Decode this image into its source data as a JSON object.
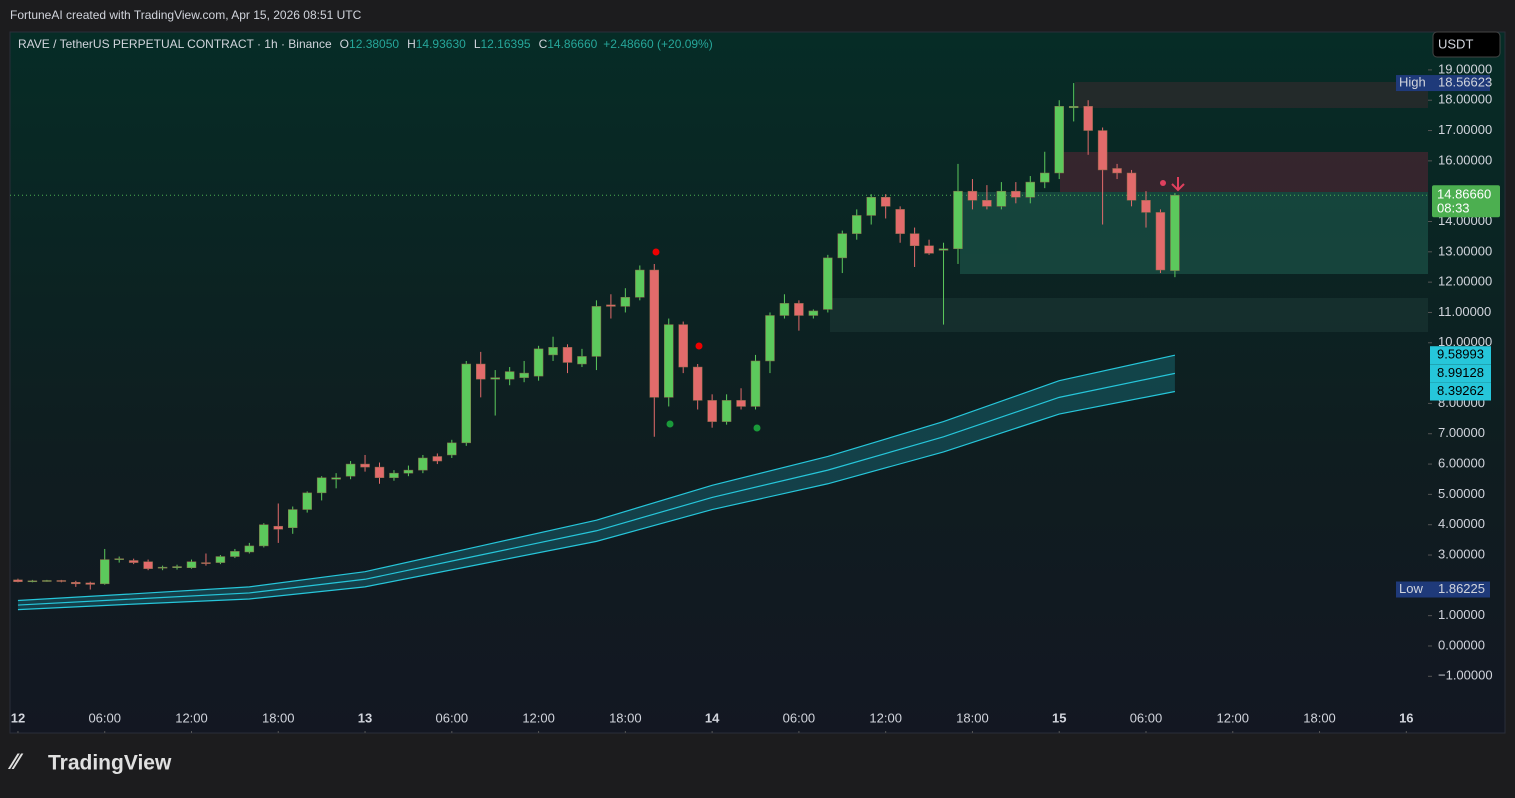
{
  "header": {
    "credit": "FortuneAI created with TradingView.com, Apr 15, 2026 08:51 UTC",
    "symbol": "RAVE / TetherUS PERPETUAL CONTRACT · 1h · Binance",
    "ohlc": [
      {
        "label": "O",
        "value": "12.38050"
      },
      {
        "label": "H",
        "value": "14.93630"
      },
      {
        "label": "L",
        "value": "12.16395"
      },
      {
        "label": "C",
        "value": "14.86660"
      }
    ],
    "change": "+2.48660 (+20.09%)",
    "currency": "USDT"
  },
  "footer": {
    "brand": "TradingView"
  },
  "chart_data": {
    "type": "candlestick",
    "x": [
      0,
      1,
      2,
      3,
      4,
      5,
      6,
      7,
      8,
      9,
      10,
      11,
      12,
      13,
      14,
      15,
      16,
      17,
      18,
      19,
      20,
      21,
      22,
      23,
      24,
      25,
      26,
      27,
      28,
      29,
      30,
      31,
      32,
      33,
      34,
      35,
      36,
      37,
      38,
      39,
      40,
      41,
      42,
      43,
      44,
      45,
      46,
      47,
      48,
      49,
      50,
      51,
      52,
      53,
      54,
      55,
      56,
      57,
      58,
      59,
      60,
      61,
      62,
      63,
      64,
      65,
      66,
      67,
      68,
      69,
      70,
      71,
      72,
      73,
      74,
      75,
      76,
      77,
      78,
      79,
      80
    ],
    "open": [
      2.18,
      2.13,
      2.15,
      2.16,
      2.1,
      2.08,
      2.05,
      2.85,
      2.82,
      2.78,
      2.58,
      2.58,
      2.58,
      2.75,
      2.75,
      2.95,
      3.1,
      3.3,
      3.95,
      3.9,
      4.5,
      5.05,
      5.5,
      5.6,
      6.0,
      5.9,
      5.55,
      5.7,
      5.8,
      6.25,
      6.3,
      6.7,
      9.3,
      8.8,
      8.8,
      8.85,
      8.9,
      9.6,
      9.85,
      9.3,
      9.55,
      11.25,
      11.2,
      11.5,
      12.4,
      8.2,
      10.6,
      9.2,
      8.1,
      7.4,
      8.1,
      7.9,
      9.4,
      10.9,
      11.3,
      10.9,
      11.1,
      12.8,
      13.6,
      14.2,
      14.8,
      14.4,
      13.6,
      13.2,
      13.05,
      13.1,
      15.0,
      14.7,
      14.5,
      15.0,
      14.8,
      15.3,
      15.6,
      17.75,
      17.8,
      17.0,
      15.75,
      15.6,
      14.7,
      14.3,
      12.3805
    ],
    "high": [
      2.22,
      2.18,
      2.18,
      2.18,
      2.15,
      2.12,
      3.2,
      2.95,
      2.88,
      2.85,
      2.65,
      2.68,
      2.85,
      3.05,
      3.0,
      3.2,
      3.4,
      4.05,
      4.7,
      4.6,
      5.1,
      5.6,
      5.7,
      6.1,
      6.3,
      6.05,
      5.8,
      5.95,
      6.3,
      6.35,
      6.8,
      9.4,
      9.7,
      9.1,
      9.2,
      9.4,
      9.9,
      10.2,
      9.95,
      9.8,
      11.4,
      11.6,
      11.8,
      12.55,
      12.6,
      10.8,
      10.7,
      9.3,
      8.3,
      8.3,
      8.5,
      9.6,
      11.0,
      11.6,
      11.4,
      11.1,
      12.9,
      13.7,
      14.4,
      14.9,
      14.9,
      14.5,
      13.8,
      13.4,
      13.3,
      15.9,
      15.4,
      15.2,
      15.3,
      15.3,
      15.5,
      16.3,
      18.0,
      18.56623,
      18.0,
      17.1,
      15.9,
      15.7,
      15.0,
      14.4,
      14.9363
    ],
    "low": [
      2.1,
      2.1,
      2.12,
      2.1,
      1.95,
      1.86225,
      2.02,
      2.75,
      2.7,
      2.5,
      2.5,
      2.52,
      2.55,
      2.65,
      2.7,
      2.9,
      3.05,
      3.25,
      3.4,
      3.7,
      4.4,
      4.8,
      5.2,
      5.5,
      5.75,
      5.35,
      5.45,
      5.6,
      5.7,
      6.0,
      6.2,
      6.6,
      8.2,
      7.6,
      8.6,
      8.7,
      8.75,
      9.4,
      9.0,
      9.2,
      9.1,
      10.8,
      11.0,
      11.4,
      6.9,
      7.9,
      9.0,
      7.8,
      7.2,
      7.3,
      7.8,
      7.8,
      9.0,
      10.8,
      10.4,
      10.8,
      11.0,
      12.3,
      13.4,
      13.9,
      14.1,
      13.3,
      12.5,
      12.9,
      10.6,
      12.6,
      14.4,
      14.4,
      14.4,
      14.6,
      14.6,
      15.1,
      15.4,
      17.3,
      16.2,
      13.9,
      15.4,
      14.5,
      13.8,
      12.3,
      12.16395
    ],
    "close": [
      2.12,
      2.15,
      2.16,
      2.13,
      2.05,
      2.03,
      2.85,
      2.88,
      2.75,
      2.55,
      2.6,
      2.62,
      2.78,
      2.72,
      2.95,
      3.12,
      3.3,
      4.0,
      3.85,
      4.5,
      5.05,
      5.55,
      5.55,
      6.0,
      5.9,
      5.55,
      5.7,
      5.8,
      6.2,
      6.1,
      6.7,
      9.3,
      8.8,
      8.85,
      9.05,
      9.0,
      9.8,
      9.85,
      9.35,
      9.55,
      11.2,
      11.2,
      11.5,
      12.4,
      8.2,
      10.6,
      9.2,
      8.1,
      7.4,
      8.1,
      7.9,
      9.4,
      10.9,
      11.3,
      10.9,
      11.05,
      12.8,
      13.6,
      14.2,
      14.8,
      14.5,
      13.6,
      13.2,
      12.95,
      13.1,
      15.0,
      14.7,
      14.5,
      15.0,
      14.8,
      15.3,
      15.6,
      17.8,
      17.8,
      17.0,
      15.7,
      15.6,
      14.7,
      14.3,
      12.4,
      14.8666
    ],
    "up_color": "#5cc95c",
    "down_color": "#e26b6b",
    "xlim": [
      -0.55,
      97.5
    ],
    "xticks": [
      {
        "value": 0,
        "label": "12"
      },
      {
        "value": 6,
        "label": "06:00"
      },
      {
        "value": 12,
        "label": "12:00"
      },
      {
        "value": 18,
        "label": "18:00"
      },
      {
        "value": 24,
        "label": "13"
      },
      {
        "value": 30,
        "label": "06:00"
      },
      {
        "value": 36,
        "label": "12:00"
      },
      {
        "value": 42,
        "label": "18:00"
      },
      {
        "value": 48,
        "label": "14"
      },
      {
        "value": 54,
        "label": "06:00"
      },
      {
        "value": 60,
        "label": "12:00"
      },
      {
        "value": 66,
        "label": "18:00"
      },
      {
        "value": 72,
        "label": "15"
      },
      {
        "value": 78,
        "label": "06:00"
      },
      {
        "value": 84,
        "label": "12:00"
      },
      {
        "value": 90,
        "label": "18:00"
      },
      {
        "value": 96,
        "label": "16"
      }
    ],
    "ylim": [
      -2.87,
      20.25
    ],
    "yticks": [
      {
        "value": 19,
        "label": "19.00000"
      },
      {
        "value": 18,
        "label": "18.00000"
      },
      {
        "value": 17,
        "label": "17.00000"
      },
      {
        "value": 16,
        "label": "16.00000"
      },
      {
        "value": 14,
        "label": "14.00000"
      },
      {
        "value": 13,
        "label": "13.00000"
      },
      {
        "value": 12,
        "label": "12.00000"
      },
      {
        "value": 11,
        "label": "11.00000"
      },
      {
        "value": 10,
        "label": "10.00000"
      },
      {
        "value": 8,
        "label": "8.00000"
      },
      {
        "value": 7,
        "label": "7.00000"
      },
      {
        "value": 6,
        "label": "6.00000"
      },
      {
        "value": 5,
        "label": "5.00000"
      },
      {
        "value": 4,
        "label": "4.00000"
      },
      {
        "value": 3,
        "label": "3.00000"
      },
      {
        "value": 1,
        "label": "1.00000"
      },
      {
        "value": 0,
        "label": "0.00000"
      },
      {
        "value": -1,
        "label": "−1.00000"
      }
    ],
    "price_labels": [
      {
        "name": "High",
        "value": 18.56623,
        "label": "18.56623",
        "color": "#1f3a7a"
      },
      {
        "name": "Low",
        "value": 1.86225,
        "label": "1.86225",
        "color": "#1f3a7a"
      }
    ],
    "last_price": {
      "value": 14.8666,
      "label": "14.86660",
      "countdown": "08:33",
      "color": "#4caf50"
    },
    "band": {
      "x": [
        0,
        8,
        16,
        24,
        32,
        40,
        48,
        56,
        64,
        72,
        80
      ],
      "color": "#26c6da",
      "series": [
        {
          "values": [
            1.5,
            1.72,
            1.95,
            2.45,
            3.3,
            4.15,
            5.3,
            6.25,
            7.4,
            8.75,
            9.58993
          ],
          "label": "9.58993"
        },
        {
          "values": [
            1.35,
            1.55,
            1.75,
            2.2,
            3.0,
            3.8,
            4.9,
            5.8,
            6.9,
            8.2,
            8.99128
          ],
          "label": "8.99128"
        },
        {
          "values": [
            1.2,
            1.38,
            1.55,
            1.95,
            2.7,
            3.45,
            4.5,
            5.35,
            6.4,
            7.65,
            8.39262
          ],
          "label": "8.39262"
        }
      ]
    }
  }
}
